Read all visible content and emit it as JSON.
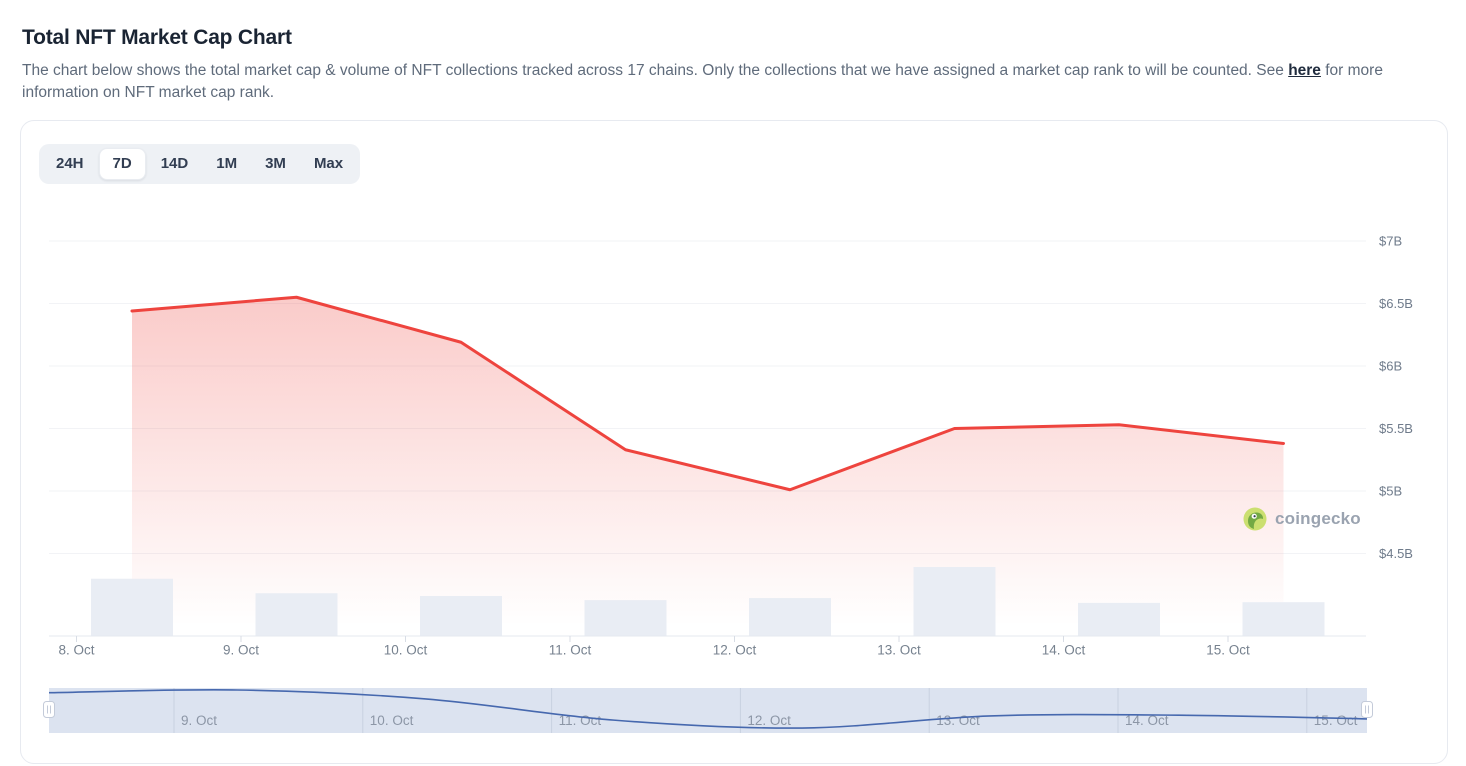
{
  "page": {
    "title": "Total NFT Market Cap Chart",
    "description_before_link": "The chart below shows the total market cap & volume of NFT collections tracked across 17 chains. Only the collections that we have assigned a market cap rank to will be counted. See ",
    "link_text": "here",
    "description_after_link": " for more information on NFT market cap rank."
  },
  "time_range": {
    "options": [
      "24H",
      "7D",
      "14D",
      "1M",
      "3M",
      "Max"
    ],
    "selected": "7D"
  },
  "watermark": {
    "label": "coingecko",
    "icon": "coingecko-gecko-icon"
  },
  "colors": {
    "market_cap_line": "#ee443e",
    "market_cap_fill_top": "rgba(238,68,62,0.28)",
    "market_cap_fill_bottom": "rgba(238,68,62,0)",
    "volume_bar": "#e9edf4",
    "gridline": "#f2f3f6",
    "axis_line": "#e5e9ef",
    "axis_tick": "#d8dde5",
    "axis_label": "#77828f",
    "y_label": "#6f7b8b",
    "navigator_bg": "#dce3f0",
    "navigator_separator": "#c9d1e0",
    "navigator_label": "#8c96a6",
    "navigator_line": "#4668ae",
    "handle_fill": "#ffffff",
    "handle_border": "#c4cbd9"
  },
  "chart_data": {
    "type": "area",
    "title": "Total NFT market cap with volume bars and range navigator",
    "categories": [
      "8. Oct",
      "9. Oct",
      "10. Oct",
      "11. Oct",
      "12. Oct",
      "13. Oct",
      "14. Oct",
      "15. Oct"
    ],
    "series": [
      {
        "name": "Market Cap",
        "type": "area",
        "unit": "USD billions",
        "values": [
          6.44,
          6.55,
          6.19,
          5.33,
          5.01,
          5.5,
          5.53,
          5.38
        ]
      },
      {
        "name": "Volume",
        "type": "bar",
        "unit": "relative (no axis labels shown)",
        "values": [
          0.83,
          0.62,
          0.58,
          0.52,
          0.55,
          1.0,
          0.48,
          0.49
        ]
      }
    ],
    "y_axis": {
      "side": "right",
      "tick_labels": [
        "$7B",
        "$6.5B",
        "$6B",
        "$5.5B",
        "$5B",
        "$4.5B"
      ],
      "tick_values": [
        7,
        6.5,
        6,
        5.5,
        5,
        4.5
      ],
      "range": [
        4.5,
        7
      ]
    },
    "x_axis": {
      "tick_labels": [
        "8. Oct",
        "9. Oct",
        "10. Oct",
        "11. Oct",
        "12. Oct",
        "13. Oct",
        "14. Oct",
        "15. Oct"
      ]
    },
    "navigator": {
      "labels": [
        "9. Oct",
        "10. Oct",
        "11. Oct",
        "12. Oct",
        "13. Oct",
        "14. Oct",
        "15. Oct"
      ],
      "series_values": [
        6.44,
        6.55,
        6.19,
        5.33,
        5.01,
        5.5,
        5.53,
        5.38
      ]
    },
    "legend": "none",
    "grid": "horizontal-only"
  }
}
